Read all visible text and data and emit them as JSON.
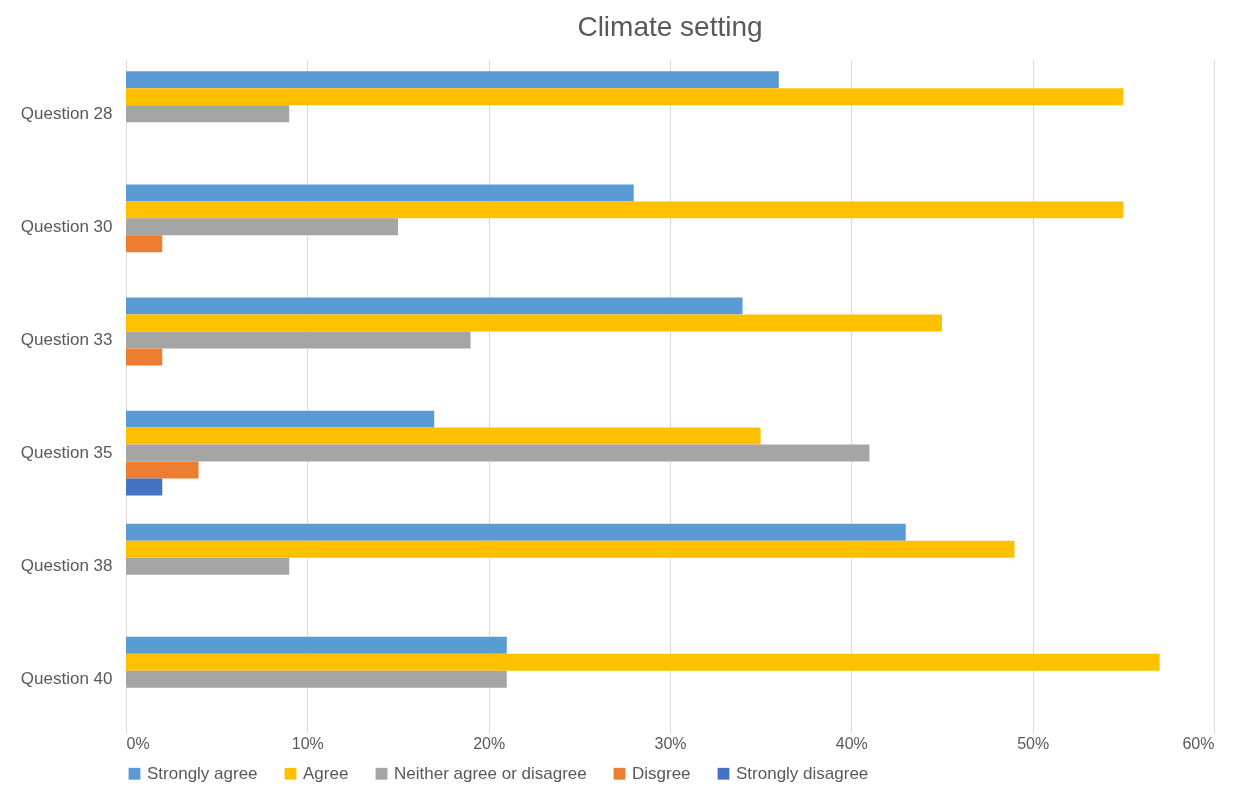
{
  "chart_data": {
    "type": "bar",
    "orientation": "horizontal",
    "title": "Climate setting",
    "categories": [
      "Question 28",
      "Question 30",
      "Question 33",
      "Question 35",
      "Question 38",
      "Question 40"
    ],
    "series": [
      {
        "name": "Strongly agree",
        "color": "#5b9bd5",
        "values": [
          36,
          28,
          34,
          17,
          43,
          21
        ]
      },
      {
        "name": "Agree",
        "color": "#ffc000",
        "values": [
          55,
          55,
          45,
          35,
          49,
          57
        ]
      },
      {
        "name": "Neither agree or disagree",
        "color": "#a5a5a5",
        "values": [
          9,
          15,
          19,
          41,
          9,
          21
        ]
      },
      {
        "name": "Disgree",
        "color": "#ed7d31",
        "values": [
          0,
          2,
          2,
          4,
          0,
          0
        ]
      },
      {
        "name": "Strongly disagree",
        "color": "#4472c4",
        "values": [
          0,
          0,
          0,
          2,
          0,
          0
        ]
      }
    ],
    "xlim": [
      0,
      60
    ],
    "xticks": [
      {
        "value": 0,
        "label": "0%"
      },
      {
        "value": 10,
        "label": "10%"
      },
      {
        "value": 20,
        "label": "20%"
      },
      {
        "value": 30,
        "label": "30%"
      },
      {
        "value": 40,
        "label": "40%"
      },
      {
        "value": 50,
        "label": "50%"
      },
      {
        "value": 60,
        "label": "60%"
      }
    ],
    "grid": "x",
    "legend": "bottom"
  }
}
